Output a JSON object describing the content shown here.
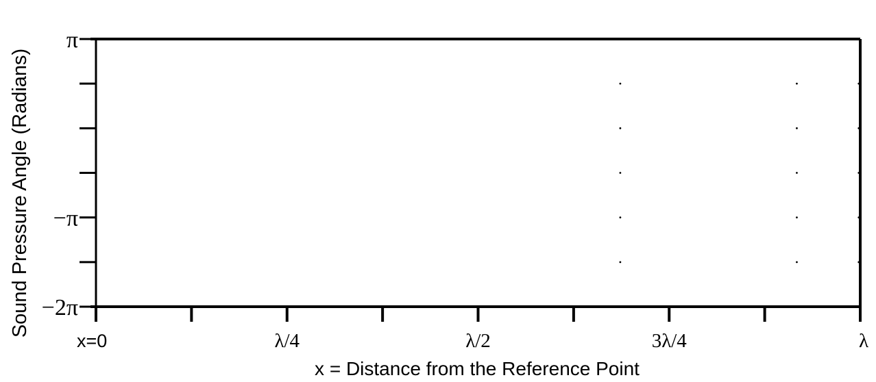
{
  "chart_data": {
    "type": "scatter",
    "title": "",
    "xlabel": "x = Distance from the Reference Point",
    "ylabel": "Sound Pressure Angle (Radians)",
    "xlim": [
      0,
      1
    ],
    "ylim": [
      -6.283,
      3.1416
    ],
    "x_unit": "wavelength (λ)",
    "y_unit": "radians",
    "grid": false,
    "legend": "none",
    "x_ticks": [
      {
        "value": 0,
        "label": "x=0"
      },
      {
        "value": 0.125,
        "label": ""
      },
      {
        "value": 0.25,
        "label": "λ/4"
      },
      {
        "value": 0.375,
        "label": ""
      },
      {
        "value": 0.5,
        "label": "λ/2"
      },
      {
        "value": 0.625,
        "label": ""
      },
      {
        "value": 0.75,
        "label": "3λ/4"
      },
      {
        "value": 0.875,
        "label": ""
      },
      {
        "value": 1,
        "label": "λ"
      }
    ],
    "y_ticks": [
      {
        "value": 3.1416,
        "label": "π"
      },
      {
        "value": 1.5708,
        "label": ""
      },
      {
        "value": 0,
        "label": ""
      },
      {
        "value": -1.5708,
        "label": ""
      },
      {
        "value": -3.1416,
        "label": "−π"
      },
      {
        "value": -4.7124,
        "label": ""
      },
      {
        "value": -6.2832,
        "label": "−2π"
      }
    ],
    "series": [
      {
        "color": "#000000",
        "points": [
          {
            "x": 0.125,
            "y": 3.1416
          },
          {
            "x": 0.25,
            "y": 3.1416
          },
          {
            "x": 0.375,
            "y": 3.1416
          },
          {
            "x": 0.5,
            "y": 3.1416
          },
          {
            "x": 0.625,
            "y": 3.1416
          },
          {
            "x": 0.75,
            "y": 3.1416
          },
          {
            "x": 0.875,
            "y": 3.1416
          },
          {
            "x": 0.686,
            "y": 1.5708
          },
          {
            "x": 0.686,
            "y": 0
          },
          {
            "x": 0.686,
            "y": -1.5708
          },
          {
            "x": 0.686,
            "y": -3.1416
          },
          {
            "x": 0.686,
            "y": -4.7124
          },
          {
            "x": 0.917,
            "y": 1.5708
          },
          {
            "x": 0.917,
            "y": 0
          },
          {
            "x": 0.917,
            "y": -1.5708
          },
          {
            "x": 0.917,
            "y": -3.1416
          },
          {
            "x": 0.917,
            "y": -4.7124
          },
          {
            "x": 0.998,
            "y": 1.5708
          },
          {
            "x": 0.998,
            "y": 0
          },
          {
            "x": 0.998,
            "y": -1.5708
          },
          {
            "x": 0.998,
            "y": -3.1416
          },
          {
            "x": 0.998,
            "y": -4.7124
          }
        ]
      }
    ]
  }
}
